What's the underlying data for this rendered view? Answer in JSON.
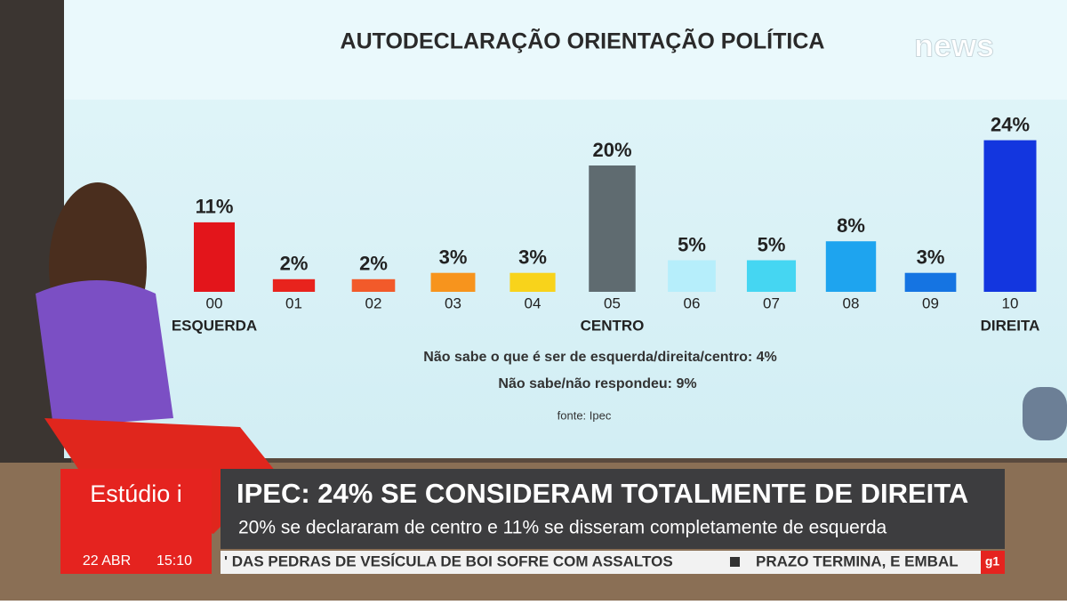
{
  "chart_data": {
    "type": "bar",
    "title": "AUTODECLARAÇÃO ORIENTAÇÃO POLÍTICA",
    "categories": [
      "00",
      "01",
      "02",
      "03",
      "04",
      "05",
      "06",
      "07",
      "08",
      "09",
      "10"
    ],
    "category_labels": [
      "ESQUERDA",
      null,
      null,
      null,
      null,
      "CENTRO",
      null,
      null,
      null,
      null,
      "DIREITA"
    ],
    "values": [
      11,
      2,
      2,
      3,
      3,
      20,
      5,
      5,
      8,
      3,
      24
    ],
    "value_labels": [
      "11%",
      "2%",
      "2%",
      "3%",
      "3%",
      "20%",
      "5%",
      "5%",
      "8%",
      "3%",
      "24%"
    ],
    "colors": [
      "#e3151b",
      "#e8231d",
      "#f25a2a",
      "#f7941d",
      "#f8d31b",
      "#5f6b70",
      "#b6eefb",
      "#45d6f2",
      "#1ea4ef",
      "#1574e2",
      "#1336df"
    ],
    "notes": [
      "Não sabe o que é ser de esquerda/direita/centro: 4%",
      "Não sabe/não respondeu: 9%"
    ],
    "source": "fonte: Ipec"
  },
  "logo": "news",
  "lower_third": {
    "program": "Estúdio i",
    "date": "22 ABR",
    "time": "15:10",
    "headline": "IPEC: 24% SE CONSIDERAM TOTALMENTE DE DIREITA",
    "subheadline": "20% se declararam de centro e 11% se disseram completamente de esquerda",
    "ticker": [
      "' DAS PEDRAS DE VESÍCULA DE BOI SOFRE COM ASSALTOS",
      "PRAZO TERMINA, E EMBAL"
    ],
    "badge": "g1"
  }
}
